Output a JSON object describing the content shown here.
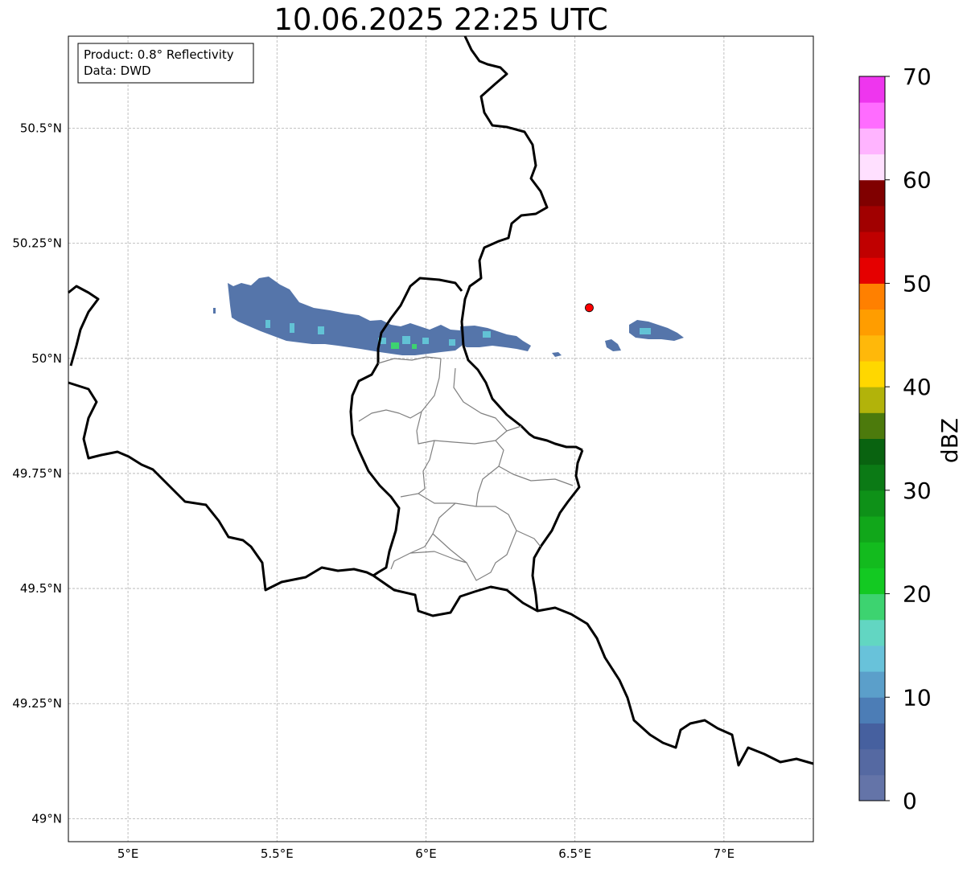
{
  "title": "10.06.2025 22:25 UTC",
  "info_box": {
    "line1": "Product: 0.8° Reflectivity",
    "line2": "Data: DWD"
  },
  "map": {
    "lon_range": [
      4.8,
      7.3
    ],
    "lat_range": [
      48.95,
      50.7
    ],
    "lon_ticks": [
      {
        "value": 5.0,
        "label": "5°E"
      },
      {
        "value": 5.5,
        "label": "5.5°E"
      },
      {
        "value": 6.0,
        "label": "6°E"
      },
      {
        "value": 6.5,
        "label": "6.5°E"
      },
      {
        "value": 7.0,
        "label": "7°E"
      }
    ],
    "lat_ticks": [
      {
        "value": 50.5,
        "label": "50.5°N"
      },
      {
        "value": 50.25,
        "label": "50.25°N"
      },
      {
        "value": 50.0,
        "label": "50°N"
      },
      {
        "value": 49.75,
        "label": "49.75°N"
      },
      {
        "value": 49.5,
        "label": "49.5°N"
      },
      {
        "value": 49.25,
        "label": "49.25°N"
      },
      {
        "value": 49.0,
        "label": "49°N"
      }
    ],
    "grid": true,
    "radar_site": {
      "lon": 6.548,
      "lat": 50.11,
      "color": "#ff0000"
    }
  },
  "colorbar": {
    "label": "dBZ",
    "range": [
      0,
      70
    ],
    "step": 2.5,
    "ticks": [
      {
        "value": 0,
        "label": "0"
      },
      {
        "value": 10,
        "label": "10"
      },
      {
        "value": 20,
        "label": "20"
      },
      {
        "value": 30,
        "label": "30"
      },
      {
        "value": 40,
        "label": "40"
      },
      {
        "value": 50,
        "label": "50"
      },
      {
        "value": 60,
        "label": "60"
      },
      {
        "value": 70,
        "label": "70"
      }
    ],
    "colors": [
      "#6474a8",
      "#5569a2",
      "#46609f",
      "#4c7db6",
      "#5b9fca",
      "#68c2da",
      "#62d6c2",
      "#3dd370",
      "#13c922",
      "#13bb1e",
      "#11a71a",
      "#0e9118",
      "#0b7a15",
      "#096310",
      "#4c7a0c",
      "#b2b30a",
      "#ffd700",
      "#ffb80a",
      "#ff9d00",
      "#ff8000",
      "#e50000",
      "#c00000",
      "#a10000",
      "#800000",
      "#ffe0ff",
      "#ffb4ff",
      "#ff6cff",
      "#ee36ee"
    ]
  }
}
